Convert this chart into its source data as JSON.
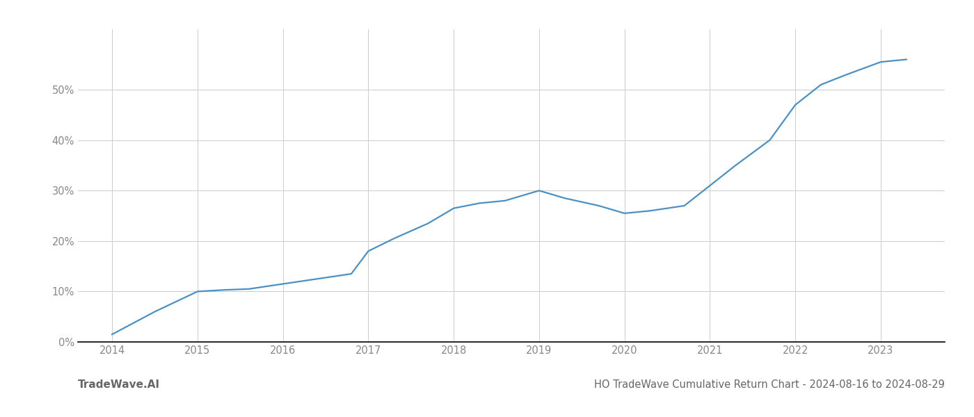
{
  "x": [
    2014,
    2014.5,
    2015,
    2015.3,
    2015.6,
    2016,
    2016.4,
    2016.8,
    2017,
    2017.3,
    2017.7,
    2018,
    2018.3,
    2018.6,
    2019,
    2019.3,
    2019.7,
    2020,
    2020.3,
    2020.7,
    2021,
    2021.3,
    2021.7,
    2022,
    2022.3,
    2022.6,
    2023,
    2023.3
  ],
  "y": [
    1.5,
    6.0,
    10.0,
    10.3,
    10.5,
    11.5,
    12.5,
    13.5,
    18.0,
    20.5,
    23.5,
    26.5,
    27.5,
    28.0,
    30.0,
    28.5,
    27.0,
    25.5,
    26.0,
    27.0,
    31.0,
    35.0,
    40.0,
    47.0,
    51.0,
    53.0,
    55.5,
    56.0
  ],
  "line_color": "#4a90c4",
  "line_width": 1.6,
  "bg_color": "#ffffff",
  "grid_color": "#cccccc",
  "tick_color": "#888888",
  "bottom_text_color": "#666666",
  "title": "HO TradeWave Cumulative Return Chart - 2024-08-16 to 2024-08-29",
  "watermark": "TradeWave.AI",
  "xlim": [
    2013.6,
    2023.75
  ],
  "ylim": [
    0,
    62
  ],
  "yticks": [
    0,
    10,
    20,
    30,
    40,
    50
  ],
  "xticks": [
    2014,
    2015,
    2016,
    2017,
    2018,
    2019,
    2020,
    2021,
    2022,
    2023
  ],
  "title_fontsize": 10.5,
  "tick_fontsize": 10.5,
  "watermark_fontsize": 11
}
